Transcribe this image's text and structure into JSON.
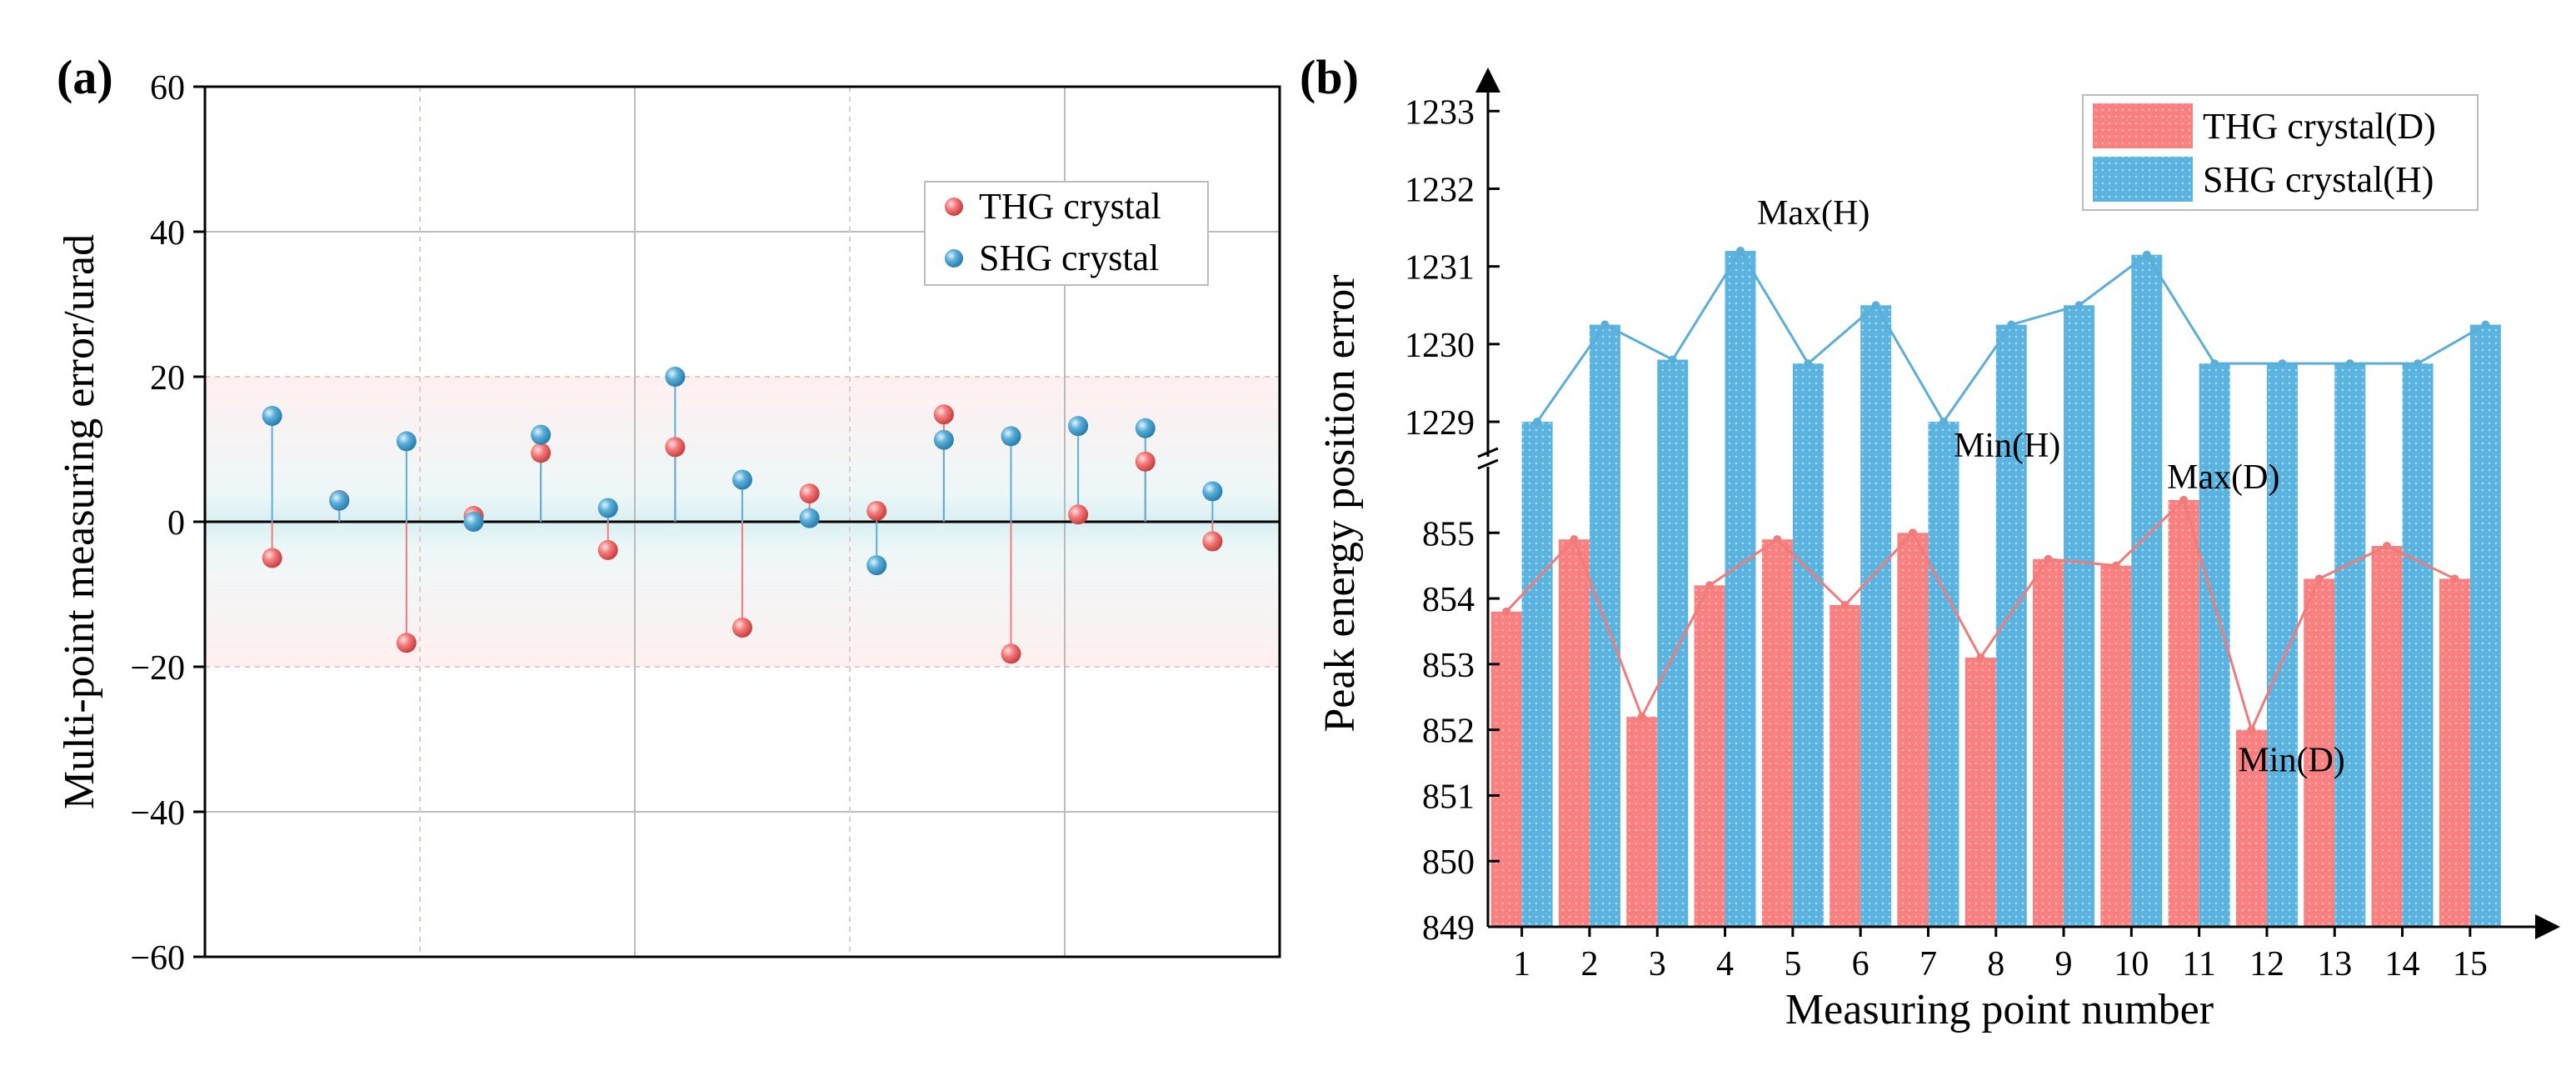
{
  "chart_data": [
    {
      "panel": "(a)",
      "type": "scatter",
      "subtype": "stem",
      "title": "",
      "xlabel": "",
      "ylabel": "Multi-point measuring error/urad",
      "ylim": [
        -60,
        60
      ],
      "yticks": [
        -60,
        -40,
        -20,
        0,
        20,
        40,
        60
      ],
      "band": [
        -20,
        20
      ],
      "grid": true,
      "legend_position": "top-right",
      "x": [
        1,
        2,
        3,
        4,
        5,
        6,
        7,
        8,
        9,
        10,
        11,
        12,
        13,
        14,
        15
      ],
      "series": [
        {
          "name": "THG crystal",
          "color": "#f07b7b",
          "values": [
            -5,
            3,
            -16.7,
            0.8,
            9.5,
            -3.9,
            10.3,
            -14.6,
            3.9,
            1.5,
            14.8,
            -18.2,
            1,
            8.3,
            -2.7
          ]
        },
        {
          "name": "SHG crystal",
          "color": "#5aaed8",
          "values": [
            14.6,
            2.9,
            11.1,
            0,
            12,
            1.9,
            20,
            5.8,
            0.5,
            -6,
            11.3,
            11.8,
            13.2,
            12.9,
            4.2
          ]
        }
      ]
    },
    {
      "panel": "(b)",
      "type": "bar",
      "title": "",
      "xlabel": "Measuring point number",
      "ylabel": "Peak energy position error",
      "categories": [
        "1",
        "2",
        "3",
        "4",
        "5",
        "6",
        "7",
        "8",
        "9",
        "10",
        "11",
        "12",
        "13",
        "14",
        "15"
      ],
      "axis_break": true,
      "lower_ylim": [
        849,
        855.6
      ],
      "lower_yticks": [
        "849",
        "850",
        "851",
        "852",
        "853",
        "854",
        "855"
      ],
      "upper_ylim": [
        1228.7,
        1233.4
      ],
      "upper_yticks": [
        "1229",
        "1230",
        "1231",
        "1232",
        "1233"
      ],
      "legend_position": "top-right",
      "series": [
        {
          "name": "THG crystal(D)",
          "color": "#fa8080",
          "values": [
            853.8,
            854.9,
            852.2,
            854.2,
            854.9,
            853.9,
            855,
            853.1,
            854.6,
            854.5,
            855.5,
            852,
            854.3,
            854.8,
            854.3
          ]
        },
        {
          "name": "SHG crystal(H)",
          "color": "#5bb4e0",
          "values": [
            1229,
            1230.25,
            1229.8,
            1231.2,
            1229.75,
            1230.5,
            1229,
            1230.25,
            1230.5,
            1231.15,
            1229.75,
            1229.75,
            1229.75,
            1229.75,
            1230.25
          ]
        }
      ],
      "annotations": [
        {
          "text": "Max(H)",
          "series": "SHG crystal(H)",
          "category": "4"
        },
        {
          "text": "Min(H)",
          "series": "SHG crystal(H)",
          "category": "7"
        },
        {
          "text": "Max(D)",
          "series": "THG crystal(D)",
          "category": "11"
        },
        {
          "text": "Min(D)",
          "series": "THG crystal(D)",
          "category": "12"
        }
      ]
    }
  ]
}
